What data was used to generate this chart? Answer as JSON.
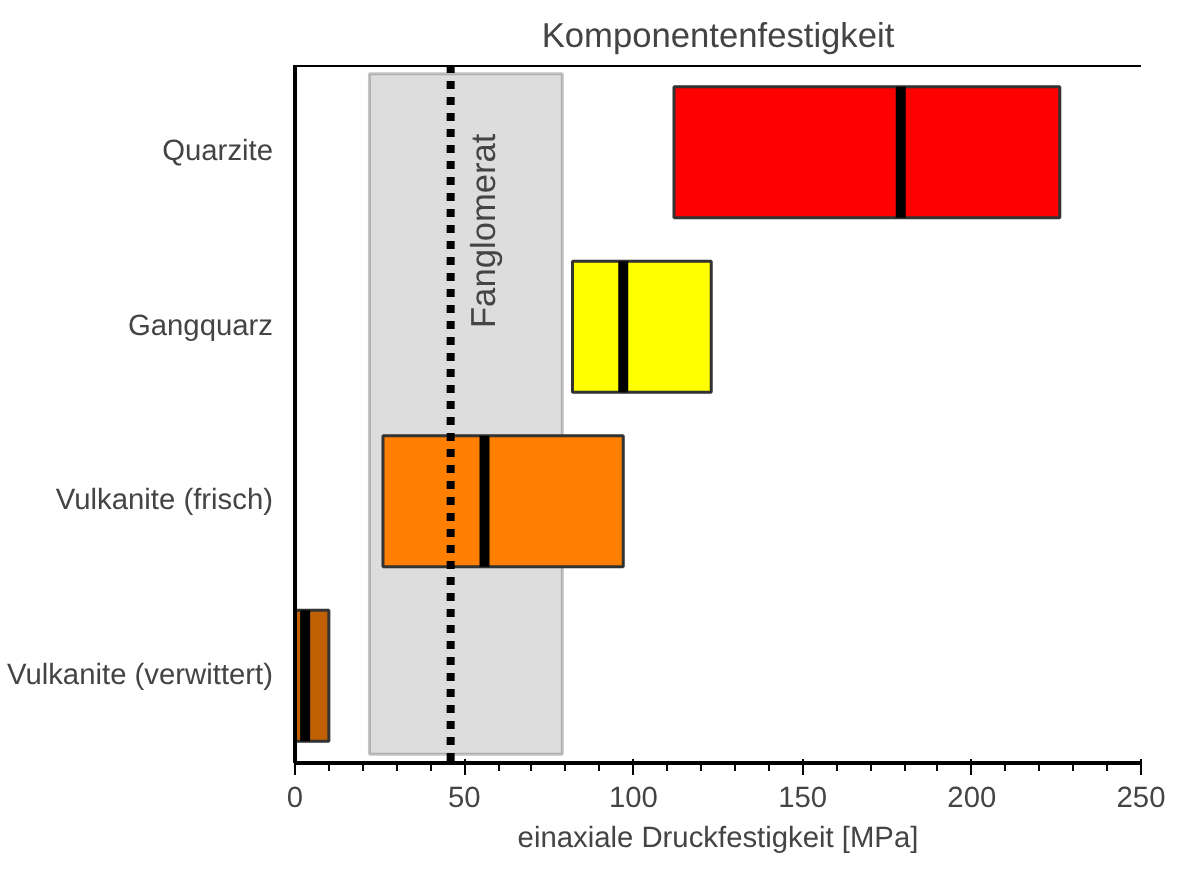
{
  "chart_data": {
    "type": "box",
    "orientation": "horizontal",
    "title": "Komponentenfestigkeit",
    "xlabel": "einaxiale Druckfestigkeit [MPa]",
    "categories": [
      "Quarzite",
      "Gangquarz",
      "Vulkanite (frisch)",
      "Vulkanite (verwittert)"
    ],
    "boxes": [
      {
        "low": 112,
        "q1": 112,
        "median": 179,
        "q3": 226,
        "high": 226
      },
      {
        "low": 82,
        "q1": 82,
        "median": 97,
        "q3": 123,
        "high": 123
      },
      {
        "low": 26,
        "q1": 26,
        "median": 56,
        "q3": 97,
        "high": 97
      },
      {
        "low": 0,
        "q1": 0,
        "median": 3,
        "q3": 10,
        "high": 10
      }
    ],
    "colors": [
      "#ff0000",
      "#ffff00",
      "#ff8000",
      "#c06000"
    ],
    "xlim": [
      0,
      250
    ],
    "xticks": [
      0,
      50,
      100,
      150,
      200,
      250
    ],
    "bands": [
      {
        "axis": "x",
        "from": 22,
        "to": 79,
        "label": "Fanglomerat",
        "color": "#dddddd"
      }
    ],
    "ref_lines": [
      {
        "axis": "x",
        "value": 46,
        "line_style": "dotted",
        "color": "#000000"
      }
    ]
  }
}
